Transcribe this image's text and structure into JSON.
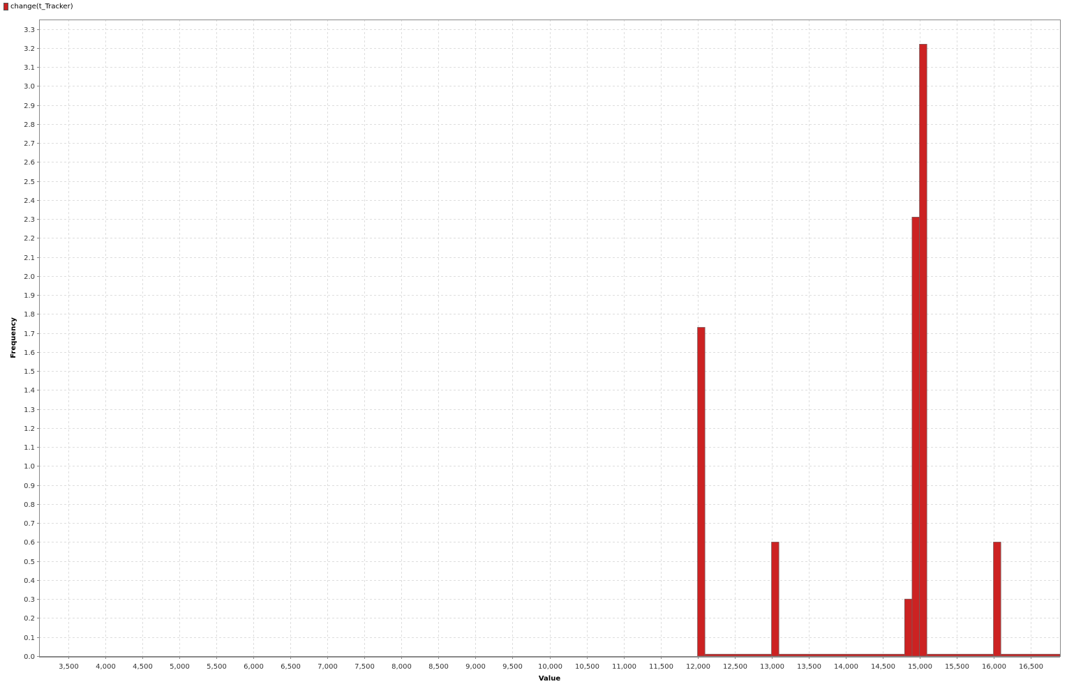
{
  "chart_data": {
    "type": "bar",
    "title": "",
    "xlabel": "Value",
    "ylabel": "Frequency",
    "legend": {
      "placement": "top-left",
      "entries": [
        "change(t_Tracker)"
      ]
    },
    "series": [
      {
        "name": "change(t_Tracker)",
        "color": "#cc2222",
        "bins": [
          {
            "x0": 12000,
            "x1": 12100,
            "y": 1.73
          },
          {
            "x0": 12100,
            "x1": 13000,
            "y": 0.01
          },
          {
            "x0": 13000,
            "x1": 13100,
            "y": 0.6
          },
          {
            "x0": 13100,
            "x1": 14800,
            "y": 0.01
          },
          {
            "x0": 14800,
            "x1": 14900,
            "y": 0.3
          },
          {
            "x0": 14900,
            "x1": 15000,
            "y": 2.31
          },
          {
            "x0": 15000,
            "x1": 15100,
            "y": 3.22
          },
          {
            "x0": 15100,
            "x1": 16000,
            "y": 0.01
          },
          {
            "x0": 16000,
            "x1": 16100,
            "y": 0.6
          },
          {
            "x0": 16100,
            "x1": 16900,
            "y": 0.01
          }
        ]
      }
    ],
    "xlim": [
      3100,
      16900
    ],
    "ylim": [
      0,
      3.35
    ],
    "x_ticks": [
      3500,
      4000,
      4500,
      5000,
      5500,
      6000,
      6500,
      7000,
      7500,
      8000,
      8500,
      9000,
      9500,
      10000,
      10500,
      11000,
      11500,
      12000,
      12500,
      13000,
      13500,
      14000,
      14500,
      15000,
      15500,
      16000,
      16500
    ],
    "x_tick_labels": [
      "3,500",
      "4,000",
      "4,500",
      "5,000",
      "5,500",
      "6,000",
      "6,500",
      "7,000",
      "7,500",
      "8,000",
      "8,500",
      "9,000",
      "9,500",
      "10,000",
      "10,500",
      "11,000",
      "11,500",
      "12,000",
      "12,500",
      "13,000",
      "13,500",
      "14,000",
      "14,500",
      "15,000",
      "15,500",
      "16,000",
      "16,500"
    ],
    "y_ticks": [
      0,
      0.1,
      0.2,
      0.3,
      0.4,
      0.5,
      0.6,
      0.7,
      0.8,
      0.9,
      1.0,
      1.1,
      1.2,
      1.3,
      1.4,
      1.5,
      1.6,
      1.7,
      1.8,
      1.9,
      2.0,
      2.1,
      2.2,
      2.3,
      2.4,
      2.5,
      2.6,
      2.7,
      2.8,
      2.9,
      3.0,
      3.1,
      3.2,
      3.3
    ],
    "y_tick_labels": [
      "0.0",
      "0.1",
      "0.2",
      "0.3",
      "0.4",
      "0.5",
      "0.6",
      "0.7",
      "0.8",
      "0.9",
      "1.0",
      "1.1",
      "1.2",
      "1.3",
      "1.4",
      "1.5",
      "1.6",
      "1.7",
      "1.8",
      "1.9",
      "2.0",
      "2.1",
      "2.2",
      "2.3",
      "2.4",
      "2.5",
      "2.6",
      "2.7",
      "2.8",
      "2.9",
      "3.0",
      "3.1",
      "3.2",
      "3.3"
    ],
    "grid": true,
    "grid_style": "dashed",
    "grid_color": "#dddddd"
  }
}
